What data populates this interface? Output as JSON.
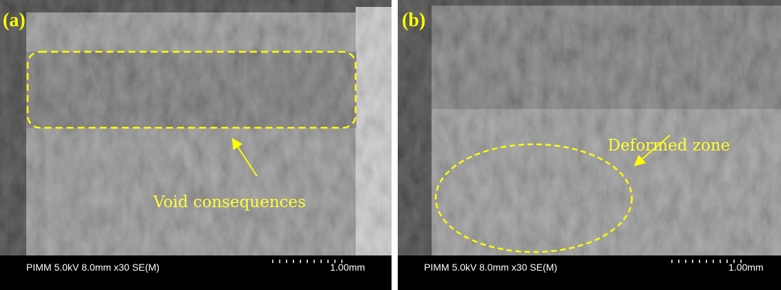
{
  "panels": [
    {
      "label": "(a)",
      "annotation": "Void consequences",
      "footer": "PIMM 5.0kV 8.0mm x30 SE(M)",
      "scale": "1.00mm"
    },
    {
      "label": "(b)",
      "annotation": "Deformed zone",
      "footer": "PIMM 5.0kV 8.0mm x30 SE(M)",
      "scale": "1.00mm"
    }
  ]
}
